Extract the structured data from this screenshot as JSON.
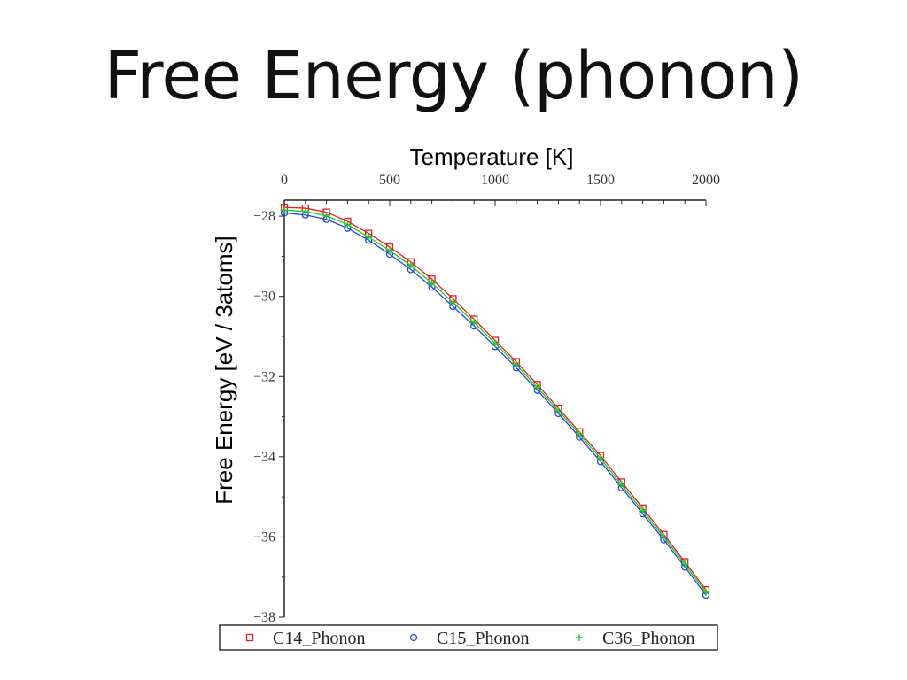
{
  "slide": {
    "title": "Free Energy (phonon)"
  },
  "chart_data": {
    "type": "line",
    "title": "",
    "xlabel": "Temperature [K]",
    "ylabel": "Free Energy [eV / 3atoms]",
    "xlim": [
      0,
      2000
    ],
    "ylim": [
      -38,
      -27.6
    ],
    "x_ticks": [
      0,
      500,
      1000,
      1500,
      2000
    ],
    "y_ticks": [
      -28,
      -30,
      -32,
      -34,
      -36,
      -38
    ],
    "x_axis_position": "top",
    "grid": false,
    "legend_position": "bottom",
    "series": [
      {
        "name": "C14_Phonon",
        "color": "#dd2222",
        "marker": "square",
        "x": [
          0,
          100,
          200,
          300,
          400,
          500,
          600,
          700,
          800,
          900,
          1000,
          1100,
          1200,
          1300,
          1400,
          1500,
          1600,
          1700,
          1800,
          1900,
          2000
        ],
        "y": [
          -27.78,
          -27.8,
          -27.9,
          -28.13,
          -28.43,
          -28.77,
          -29.14,
          -29.57,
          -30.06,
          -30.57,
          -31.1,
          -31.63,
          -32.2,
          -32.79,
          -33.38,
          -33.97,
          -34.63,
          -35.28,
          -35.94,
          -36.62,
          -37.32
        ]
      },
      {
        "name": "C15_Phonon",
        "color": "#2244dd",
        "marker": "circle",
        "x": [
          0,
          100,
          200,
          300,
          400,
          500,
          600,
          700,
          800,
          900,
          1000,
          1100,
          1200,
          1300,
          1400,
          1500,
          1600,
          1700,
          1800,
          1900,
          2000
        ],
        "y": [
          -27.92,
          -27.97,
          -28.08,
          -28.3,
          -28.6,
          -28.95,
          -29.33,
          -29.77,
          -30.25,
          -30.74,
          -31.25,
          -31.78,
          -32.34,
          -32.92,
          -33.51,
          -34.12,
          -34.77,
          -35.42,
          -36.07,
          -36.75,
          -37.45
        ]
      },
      {
        "name": "C36_Phonon",
        "color": "#22cc22",
        "marker": "plus",
        "x": [
          0,
          100,
          200,
          300,
          400,
          500,
          600,
          700,
          800,
          900,
          1000,
          1100,
          1200,
          1300,
          1400,
          1500,
          1600,
          1700,
          1800,
          1900,
          2000
        ],
        "y": [
          -27.85,
          -27.88,
          -27.99,
          -28.21,
          -28.52,
          -28.86,
          -29.23,
          -29.67,
          -30.15,
          -30.65,
          -31.17,
          -31.7,
          -32.27,
          -32.85,
          -33.44,
          -34.04,
          -34.7,
          -35.35,
          -36.0,
          -36.68,
          -37.38
        ]
      }
    ]
  }
}
